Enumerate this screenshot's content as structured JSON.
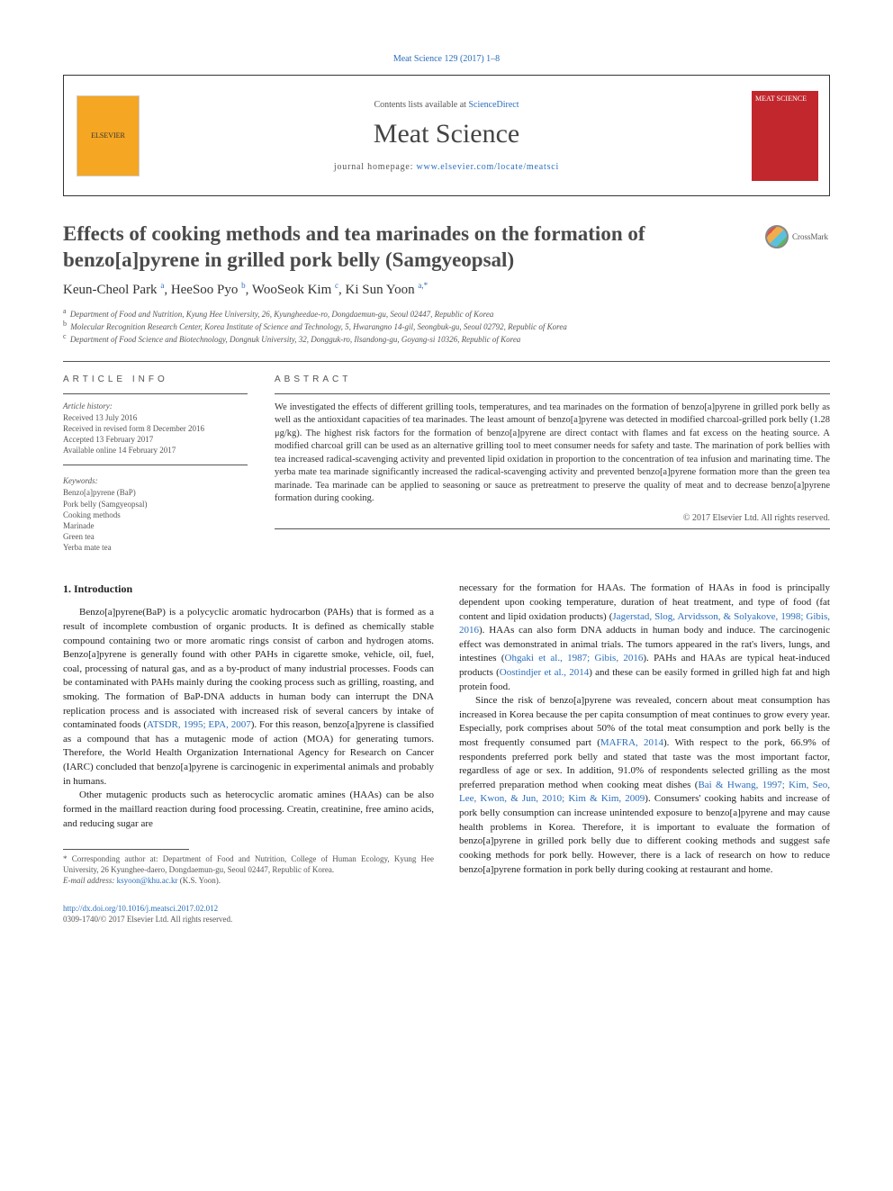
{
  "citation": "Meat Science 129 (2017) 1–8",
  "header": {
    "contents_prefix": "Contents lists available at ",
    "contents_link": "ScienceDirect",
    "journal": "Meat Science",
    "homepage_prefix": "journal homepage: ",
    "homepage_link": "www.elsevier.com/locate/meatsci",
    "publisher_logo": "ELSEVIER",
    "cover_label": "MEAT SCIENCE"
  },
  "title": "Effects of cooking methods and tea marinades on the formation of benzo[a]pyrene in grilled pork belly (Samgyeopsal)",
  "crossmark": "CrossMark",
  "authors_html": "Keun-Cheol Park <sup>a</sup>, HeeSoo Pyo <sup>b</sup>, WooSeok Kim <sup>c</sup>, Ki Sun Yoon <sup>a,*</sup>",
  "affiliations": [
    {
      "sup": "a",
      "text": "Department of Food and Nutrition, Kyung Hee University, 26, Kyungheedae-ro, Dongdaemun-gu, Seoul 02447, Republic of Korea"
    },
    {
      "sup": "b",
      "text": "Molecular Recognition Research Center, Korea Institute of Science and Technology, 5, Hwarangno 14-gil, Seongbuk-gu, Seoul 02792, Republic of Korea"
    },
    {
      "sup": "c",
      "text": "Department of Food Science and Biotechnology, Dongnuk University, 32, Dongguk-ro, Ilsandong-gu, Goyang-si 10326, Republic of Korea"
    }
  ],
  "info": {
    "label": "ARTICLE INFO",
    "history_label": "Article history:",
    "history": [
      "Received 13 July 2016",
      "Received in revised form 8 December 2016",
      "Accepted 13 February 2017",
      "Available online 14 February 2017"
    ],
    "keywords_label": "Keywords:",
    "keywords": [
      "Benzo[a]pyrene (BaP)",
      "Pork belly (Samgyeopsal)",
      "Cooking methods",
      "Marinade",
      "Green tea",
      "Yerba mate tea"
    ]
  },
  "abstract": {
    "label": "ABSTRACT",
    "text": "We investigated the effects of different grilling tools, temperatures, and tea marinades on the formation of benzo[a]pyrene in grilled pork belly as well as the antioxidant capacities of tea marinades. The least amount of benzo[a]pyrene was detected in modified charcoal-grilled pork belly (1.28 μg/kg). The highest risk factors for the formation of benzo[a]pyrene are direct contact with flames and fat excess on the heating source. A modified charcoal grill can be used as an alternative grilling tool to meet consumer needs for safety and taste. The marination of pork bellies with tea increased radical-scavenging activity and prevented lipid oxidation in proportion to the concentration of tea infusion and marinating time. The yerba mate tea marinade significantly increased the radical-scavenging activity and prevented benzo[a]pyrene formation more than the green tea marinade. Tea marinade can be applied to seasoning or sauce as pretreatment to preserve the quality of meat and to decrease benzo[a]pyrene formation during cooking.",
    "copyright": "© 2017 Elsevier Ltd. All rights reserved."
  },
  "body": {
    "heading": "1. Introduction",
    "left_paragraphs": [
      "Benzo[a]pyrene(BaP) is a polycyclic aromatic hydrocarbon (PAHs) that is formed as a result of incomplete combustion of organic products. It is defined as chemically stable compound containing two or more aromatic rings consist of carbon and hydrogen atoms. Benzo[a]pyrene is generally found with other PAHs in cigarette smoke, vehicle, oil, fuel, coal, processing of natural gas, and as a by-product of many industrial processes. Foods can be contaminated with PAHs mainly during the cooking process such as grilling, roasting, and smoking. The formation of BaP-DNA adducts in human body can interrupt the DNA replication process and is associated with increased risk of several cancers by intake of contaminated foods (<a>ATSDR, 1995; EPA, 2007</a>). For this reason, benzo[a]pyrene is classified as a compound that has a mutagenic mode of action (MOA) for generating tumors. Therefore, the World Health Organization International Agency for Research on Cancer (IARC) concluded that benzo[a]pyrene is carcinogenic in experimental animals and probably in humans.",
      "Other mutagenic products such as heterocyclic aromatic amines (HAAs) can be also formed in the maillard reaction during food processing. Creatin, creatinine, free amino acids, and reducing sugar are"
    ],
    "right_paragraphs": [
      "necessary for the formation for HAAs. The formation of HAAs in food is principally dependent upon cooking temperature, duration of heat treatment, and type of food (fat content and lipid oxidation products) (<a>Jagerstad, Slog, Arvidsson, & Solyakove, 1998; Gibis, 2016</a>). HAAs can also form DNA adducts in human body and induce. The carcinogenic effect was demonstrated in animal trials. The tumors appeared in the rat's livers, lungs, and intestines (<a>Ohgaki et al., 1987; Gibis, 2016</a>). PAHs and HAAs are typical heat-induced products (<a>Oostindjer et al., 2014</a>) and these can be easily formed in grilled high fat and high protein food.",
      "Since the risk of benzo[a]pyrene was revealed, concern about meat consumption has increased in Korea because the per capita consumption of meat continues to grow every year. Especially, pork comprises about 50% of the total meat consumption and pork belly is the most frequently consumed part (<a>MAFRA, 2014</a>). With respect to the pork, 66.9% of respondents preferred pork belly and stated that taste was the most important factor, regardless of age or sex. In addition, 91.0% of respondents selected grilling as the most preferred preparation method when cooking meat dishes (<a>Bai & Hwang, 1997; Kim, Seo, Lee, Kwon, & Jun, 2010; Kim & Kim, 2009</a>). Consumers' cooking habits and increase of pork belly consumption can increase unintended exposure to benzo[a]pyrene and may cause health problems in Korea. Therefore, it is important to evaluate the formation of benzo[a]pyrene in grilled pork belly due to different cooking methods and suggest safe cooking methods for pork belly. However, there is a lack of research on how to reduce benzo[a]pyrene formation in pork belly during cooking at restaurant and home."
    ]
  },
  "footnote": {
    "corresponding": "* Corresponding author at: Department of Food and Nutrition, College of Human Ecology, Kyung Hee University, 26 Kyunghee-daero, Dongdaemun-gu, Seoul 02447, Republic of Korea.",
    "email_label": "E-mail address: ",
    "email": "ksyoon@khu.ac.kr",
    "email_suffix": " (K.S. Yoon)."
  },
  "footer": {
    "doi": "http://dx.doi.org/10.1016/j.meatsci.2017.02.012",
    "issn_copyright": "0309-1740/© 2017 Elsevier Ltd. All rights reserved."
  },
  "colors": {
    "link": "#2a6ebb",
    "text": "#333333",
    "muted": "#555555",
    "cover_bg": "#c1272d"
  }
}
